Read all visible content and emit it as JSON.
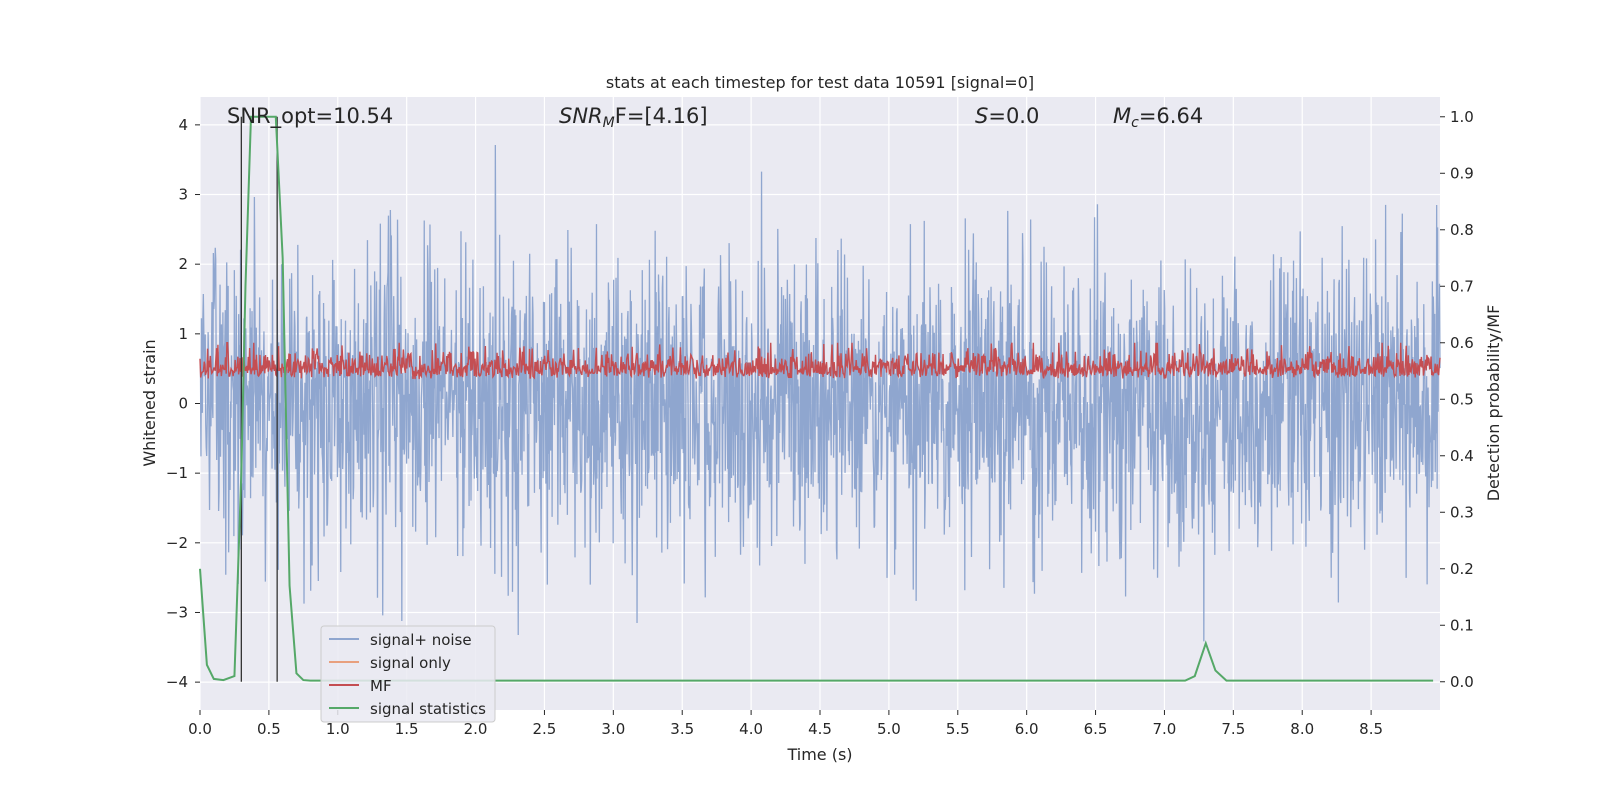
{
  "chart_data": {
    "type": "line",
    "title": "stats at each timestep for test data 10591 [signal=0]",
    "xlabel": "Time (s)",
    "ylabel": "Whitened strain",
    "y2label": "Detection probability/MF",
    "xlim": [
      0.0,
      9.0
    ],
    "ylim": [
      -4.4,
      4.4
    ],
    "y2lim": [
      -0.05,
      1.035
    ],
    "xticks": [
      "0.0",
      "0.5",
      "1.0",
      "1.5",
      "2.0",
      "2.5",
      "3.0",
      "3.5",
      "4.0",
      "4.5",
      "5.0",
      "5.5",
      "6.0",
      "6.5",
      "7.0",
      "7.5",
      "8.0",
      "8.5"
    ],
    "yticks": [
      "4",
      "3",
      "2",
      "1",
      "0",
      "−1",
      "−2",
      "−3",
      "−4"
    ],
    "y2ticks": [
      "1.0",
      "0.9",
      "0.8",
      "0.7",
      "0.6",
      "0.5",
      "0.4",
      "0.3",
      "0.2",
      "0.1",
      "0.0"
    ],
    "annotations": {
      "snr_opt": "SNR_opt=10.54",
      "snr_mf_sym": "SNR",
      "snr_mf_sub": "M",
      "snr_mf_rest": "F=[4.16]",
      "s_sym": "S",
      "s_rest": "=0.0",
      "mc_sym": "M",
      "mc_sub": "c",
      "mc_rest": "=6.64"
    },
    "legend_position": "lower-left",
    "series": [
      {
        "name": "signal+ noise",
        "color": "#8fa6cf",
        "style": "dense gaussian noise, std≈1.0",
        "amplitude_range": [
          -4.0,
          4.0
        ]
      },
      {
        "name": "signal only",
        "color": "#e8a07e",
        "values": []
      },
      {
        "name": "MF",
        "color": "#c44e52",
        "axis": "right",
        "value_range": [
          0.49,
          0.6
        ]
      },
      {
        "name": "signal statistics",
        "color": "#55a868",
        "axis": "right",
        "x": [
          0.0,
          0.05,
          0.1,
          0.17,
          0.25,
          0.3,
          0.33,
          0.37,
          0.4,
          0.5,
          0.55,
          0.6,
          0.65,
          0.7,
          0.75,
          0.8,
          7.1,
          7.15,
          7.22,
          7.3,
          7.37,
          7.45,
          8.95
        ],
        "y": [
          0.2,
          0.03,
          0.005,
          0.003,
          0.01,
          0.37,
          0.7,
          1.0,
          1.0,
          1.0,
          1.0,
          0.75,
          0.17,
          0.015,
          0.003,
          0.002,
          0.002,
          0.002,
          0.01,
          0.068,
          0.02,
          0.002,
          0.002
        ]
      }
    ],
    "vertical_markers": [
      0.3,
      0.56
    ],
    "legend": [
      "signal+ noise",
      "signal only",
      "MF",
      "signal statistics"
    ]
  }
}
